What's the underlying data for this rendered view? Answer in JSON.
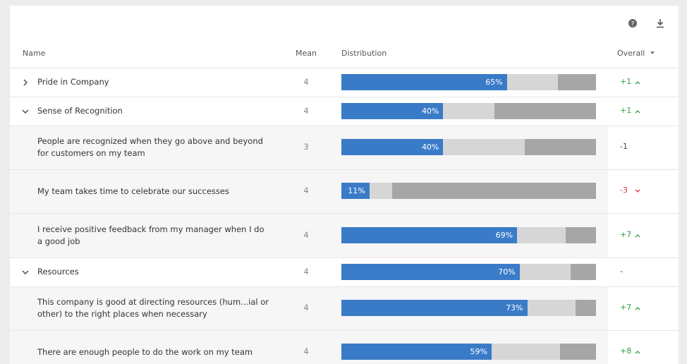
{
  "header": {
    "columns": [
      "Name",
      "Mean",
      "Distribution",
      "Overall"
    ]
  },
  "rows": [
    {
      "name": "Pride in Company",
      "level": 0,
      "mean": 4,
      "distribution": [
        {
          "value": 65,
          "label": "65%"
        },
        {
          "value": 20
        },
        {
          "value": 15
        }
      ],
      "overall": "+1"
    },
    {
      "name": "Sense of Recognition",
      "level": 0,
      "mean": 4,
      "distribution": [
        {
          "value": 40,
          "label": "40%"
        },
        {
          "value": 20
        },
        {
          "value": 40
        }
      ],
      "overall": "+1"
    },
    {
      "name": "People are recognized when they go above and beyond for customers on my team",
      "level": 1,
      "mean": 3,
      "distribution": [
        {
          "value": 40,
          "label": "40%"
        },
        {
          "value": 32
        },
        {
          "value": 28
        }
      ],
      "overall": "-1"
    },
    {
      "name": "My team takes time to celebrate our successes",
      "level": 1,
      "mean": 4,
      "distribution": [
        {
          "value": 11,
          "label": "11%"
        },
        {
          "value": 9
        },
        {
          "value": 80
        }
      ],
      "overall": "-3"
    },
    {
      "name": "I receive positive feedback from my manager when I do a good job",
      "level": 1,
      "mean": 4,
      "distribution": [
        {
          "value": 69,
          "label": "69%"
        },
        {
          "value": 19
        },
        {
          "value": 12
        }
      ],
      "overall": "+7"
    },
    {
      "name": "Resources",
      "level": 0,
      "mean": 4,
      "distribution": [
        {
          "value": 70,
          "label": "70%"
        },
        {
          "value": 20
        },
        {
          "value": 10
        }
      ],
      "overall": "-"
    },
    {
      "name": "This company is good at directing resources (hum...ial or other) to the right places when necessary",
      "level": 1,
      "mean": 4,
      "distribution": [
        {
          "value": 73,
          "label": "73%"
        },
        {
          "value": 19
        },
        {
          "value": 8
        }
      ],
      "overall": "+7"
    },
    {
      "name": "There are enough people to do the work on my team",
      "level": 1,
      "mean": 4,
      "distribution": [
        {
          "value": 59,
          "label": "59%"
        },
        {
          "value": 27
        },
        {
          "value": 14
        }
      ],
      "overall": "+8"
    }
  ]
}
